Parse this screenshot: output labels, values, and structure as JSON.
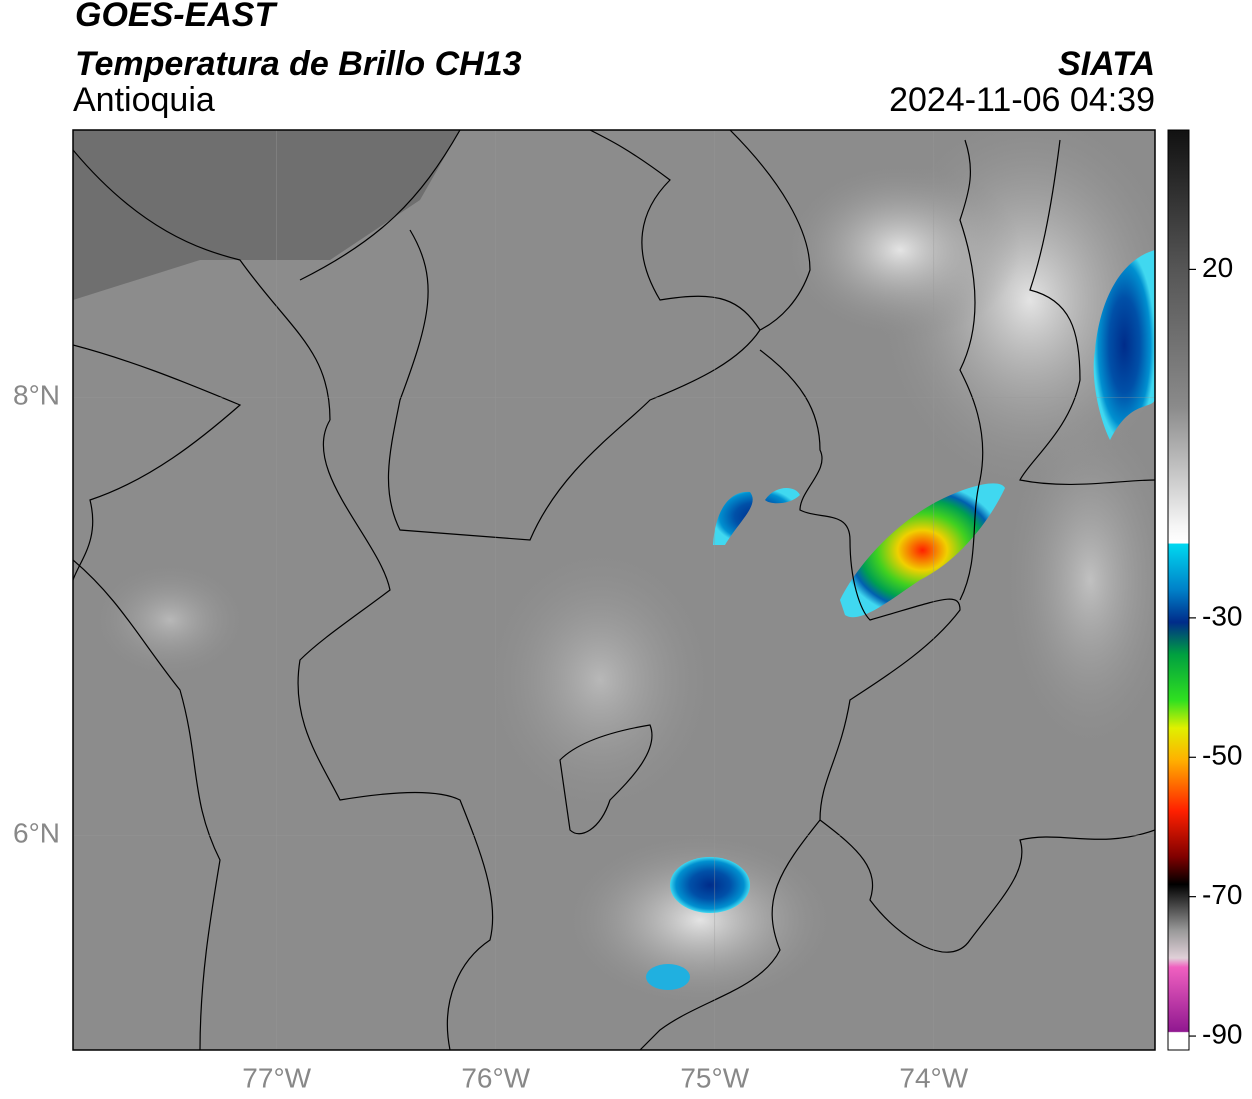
{
  "header": {
    "title": "GOES-EAST",
    "subtitle": "Temperatura de Brillo CH13",
    "region": "Antioquia",
    "source": "SIATA",
    "timestamp": "2024-11-06 04:39"
  },
  "map": {
    "xlim": [
      -77.93,
      -72.99
    ],
    "ylim": [
      5.02,
      9.22
    ],
    "xticks": [
      {
        "value": -77,
        "label": "77°W"
      },
      {
        "value": -76,
        "label": "76°W"
      },
      {
        "value": -75,
        "label": "75°W"
      },
      {
        "value": -74,
        "label": "74°W"
      }
    ],
    "yticks": [
      {
        "value": 8,
        "label": "8°N"
      },
      {
        "value": 6,
        "label": "6°N"
      }
    ],
    "grid": true
  },
  "colorbar": {
    "lim": [
      40,
      -92
    ],
    "ticks": [
      20,
      -30,
      -50,
      -70,
      -90
    ]
  }
}
